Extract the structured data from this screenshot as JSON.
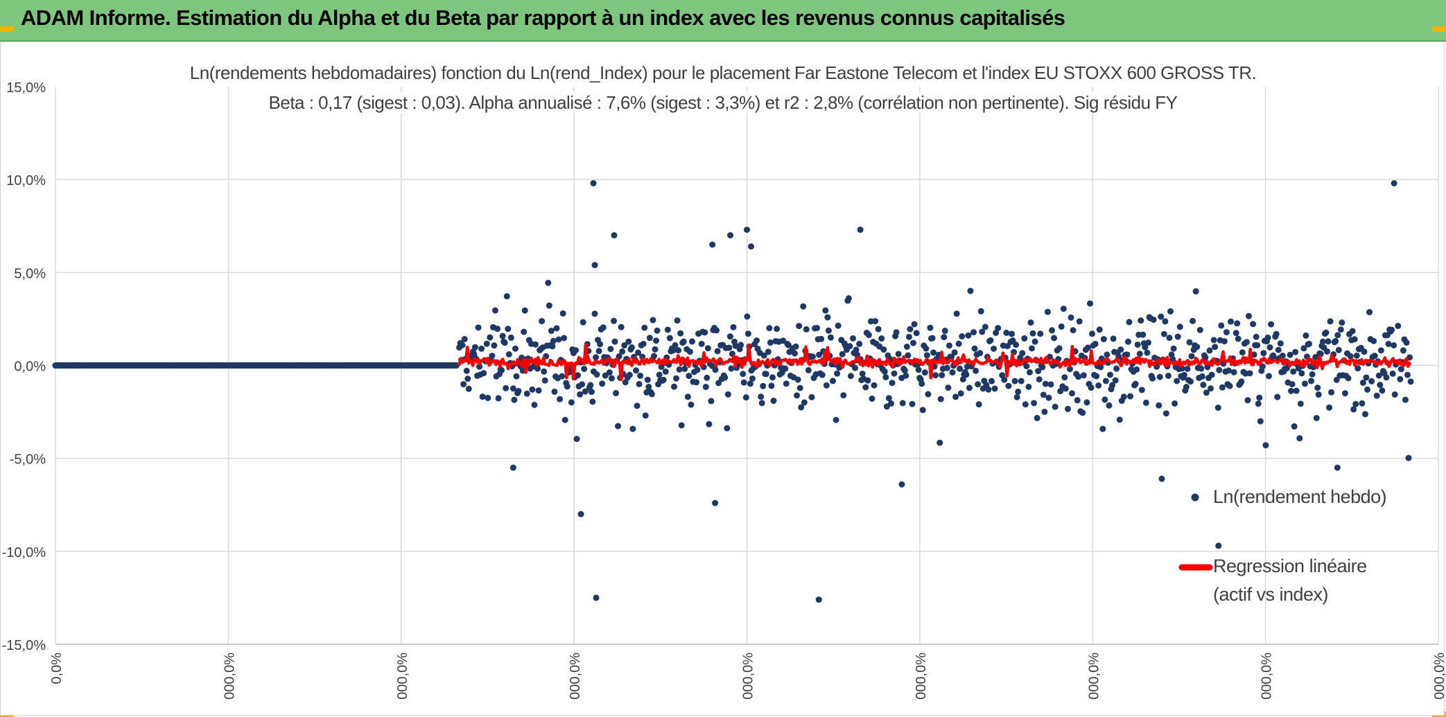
{
  "banner": {
    "title": "ADAM Informe. Estimation du Alpha et du Beta par rapport à un index avec les revenus connus capitalisés"
  },
  "colors": {
    "banner_bg": "#7dc67e",
    "points": "#203864",
    "regression": "#ff0000",
    "grid": "#d9d9d9"
  },
  "chart_data": {
    "type": "scatter",
    "title_line1": "Ln(rendements hebdomadaires) fonction du Ln(rend_Index) pour le placement Far Eastone Telecom  et l'index EU STOXX 600 GROSS TR.",
    "title_line2": "Beta : 0,17 (sigest : 0,03). Alpha annualisé : 7,6% (sigest : 3,3%) et r2 : 2,8% (corrélation non pertinente). Sig résidu FY",
    "y_tick_labels": [
      "15,0%",
      "10,0%",
      "5,0%",
      "0,0%",
      "-5,0%",
      "-10,0%",
      "-15,0%"
    ],
    "x_tick_labels": [
      "0,0%",
      "000,0%",
      "000,0%",
      "000,0%",
      "000,0%",
      "000,0%",
      "000,0%",
      "000,0%",
      "000,0%"
    ],
    "ylim": [
      -0.15,
      0.15
    ],
    "grid": true,
    "legend_position": "bottom-right",
    "series": [
      {
        "name": "Ln(rendement hebdo)",
        "kind": "points",
        "flat_segment": {
          "x_start": 0.0,
          "x_end": 0.29,
          "y": 0.0
        },
        "outliers": [
          {
            "x": 0.39,
            "y": 0.054
          },
          {
            "x": 0.475,
            "y": 0.065
          },
          {
            "x": 0.389,
            "y": 0.098
          },
          {
            "x": 0.404,
            "y": 0.07
          },
          {
            "x": 0.488,
            "y": 0.07
          },
          {
            "x": 0.5,
            "y": 0.073
          },
          {
            "x": 0.503,
            "y": 0.064
          },
          {
            "x": 0.582,
            "y": 0.073
          },
          {
            "x": 0.968,
            "y": 0.098
          },
          {
            "x": 0.38,
            "y": -0.08
          },
          {
            "x": 0.391,
            "y": -0.125
          },
          {
            "x": 0.477,
            "y": -0.074
          },
          {
            "x": 0.552,
            "y": -0.126
          },
          {
            "x": 0.612,
            "y": -0.064
          },
          {
            "x": 0.8,
            "y": -0.061
          },
          {
            "x": 0.841,
            "y": -0.097
          },
          {
            "x": 0.331,
            "y": -0.055
          },
          {
            "x": 0.927,
            "y": -0.055
          }
        ],
        "cloud": {
          "x_start": 0.292,
          "x_end": 0.98,
          "count": 900,
          "typical_spread": 0.02
        }
      },
      {
        "name": "Regression linéaire (actif vs index)",
        "kind": "line",
        "x_start": 0.292,
        "x_end": 0.98,
        "y_center": 0.002,
        "typical_spread": 0.002
      }
    ]
  },
  "legend": {
    "points_label": "Ln(rendement hebdo)",
    "regression_label_line1": "Regression linéaire",
    "regression_label_line2": "(actif vs index)"
  }
}
